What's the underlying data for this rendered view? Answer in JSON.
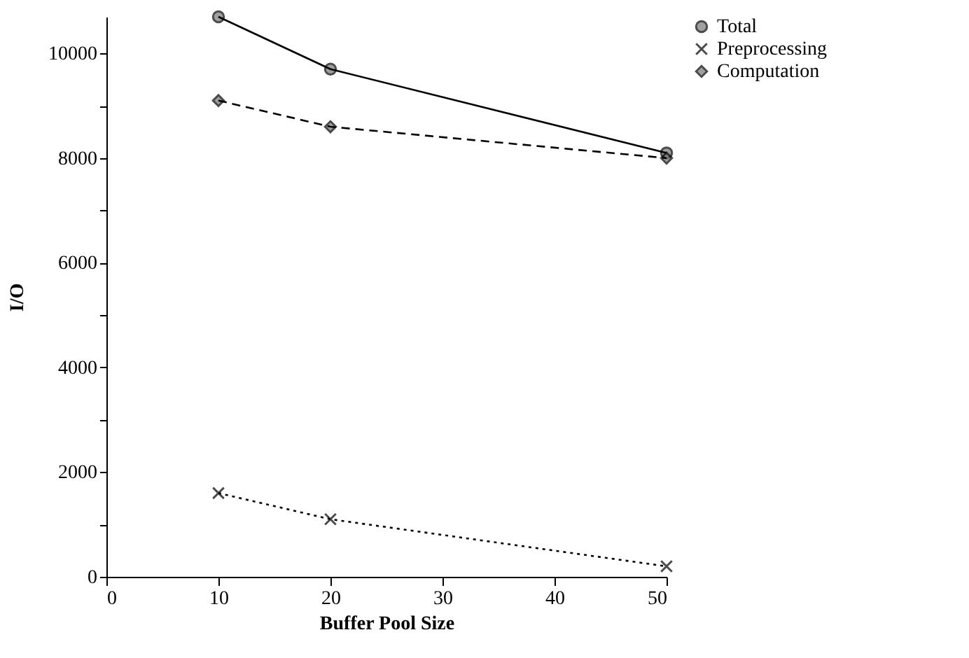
{
  "chart_data": {
    "type": "line",
    "xlabel": "Buffer Pool Size",
    "ylabel": "I/O",
    "x": [
      10,
      20,
      50
    ],
    "series": [
      {
        "name": "Total",
        "color": "#000000",
        "marker": "circle",
        "line_style": "solid",
        "values": [
          10700,
          9700,
          8100
        ]
      },
      {
        "name": "Preprocessing",
        "color": "#000000",
        "marker": "cross",
        "line_style": "dotted",
        "values": [
          1600,
          1100,
          200
        ]
      },
      {
        "name": "Computation",
        "color": "#000000",
        "marker": "diamond",
        "line_style": "dashed",
        "values": [
          9100,
          8600,
          8000
        ]
      }
    ],
    "xlim": [
      0,
      50
    ],
    "xticks": [
      0,
      10,
      20,
      30,
      40,
      50
    ],
    "ylim": [
      0,
      10700
    ],
    "yticks": [
      0,
      {
        "value": 1000,
        "label": null
      },
      2000,
      {
        "value": 3000,
        "label": null
      },
      4000,
      {
        "value": 5000,
        "label": null
      },
      6000,
      {
        "value": 7000,
        "label": null
      },
      8000,
      {
        "value": 9000,
        "label": null
      },
      10000
    ],
    "grid": false,
    "legend": "right"
  }
}
